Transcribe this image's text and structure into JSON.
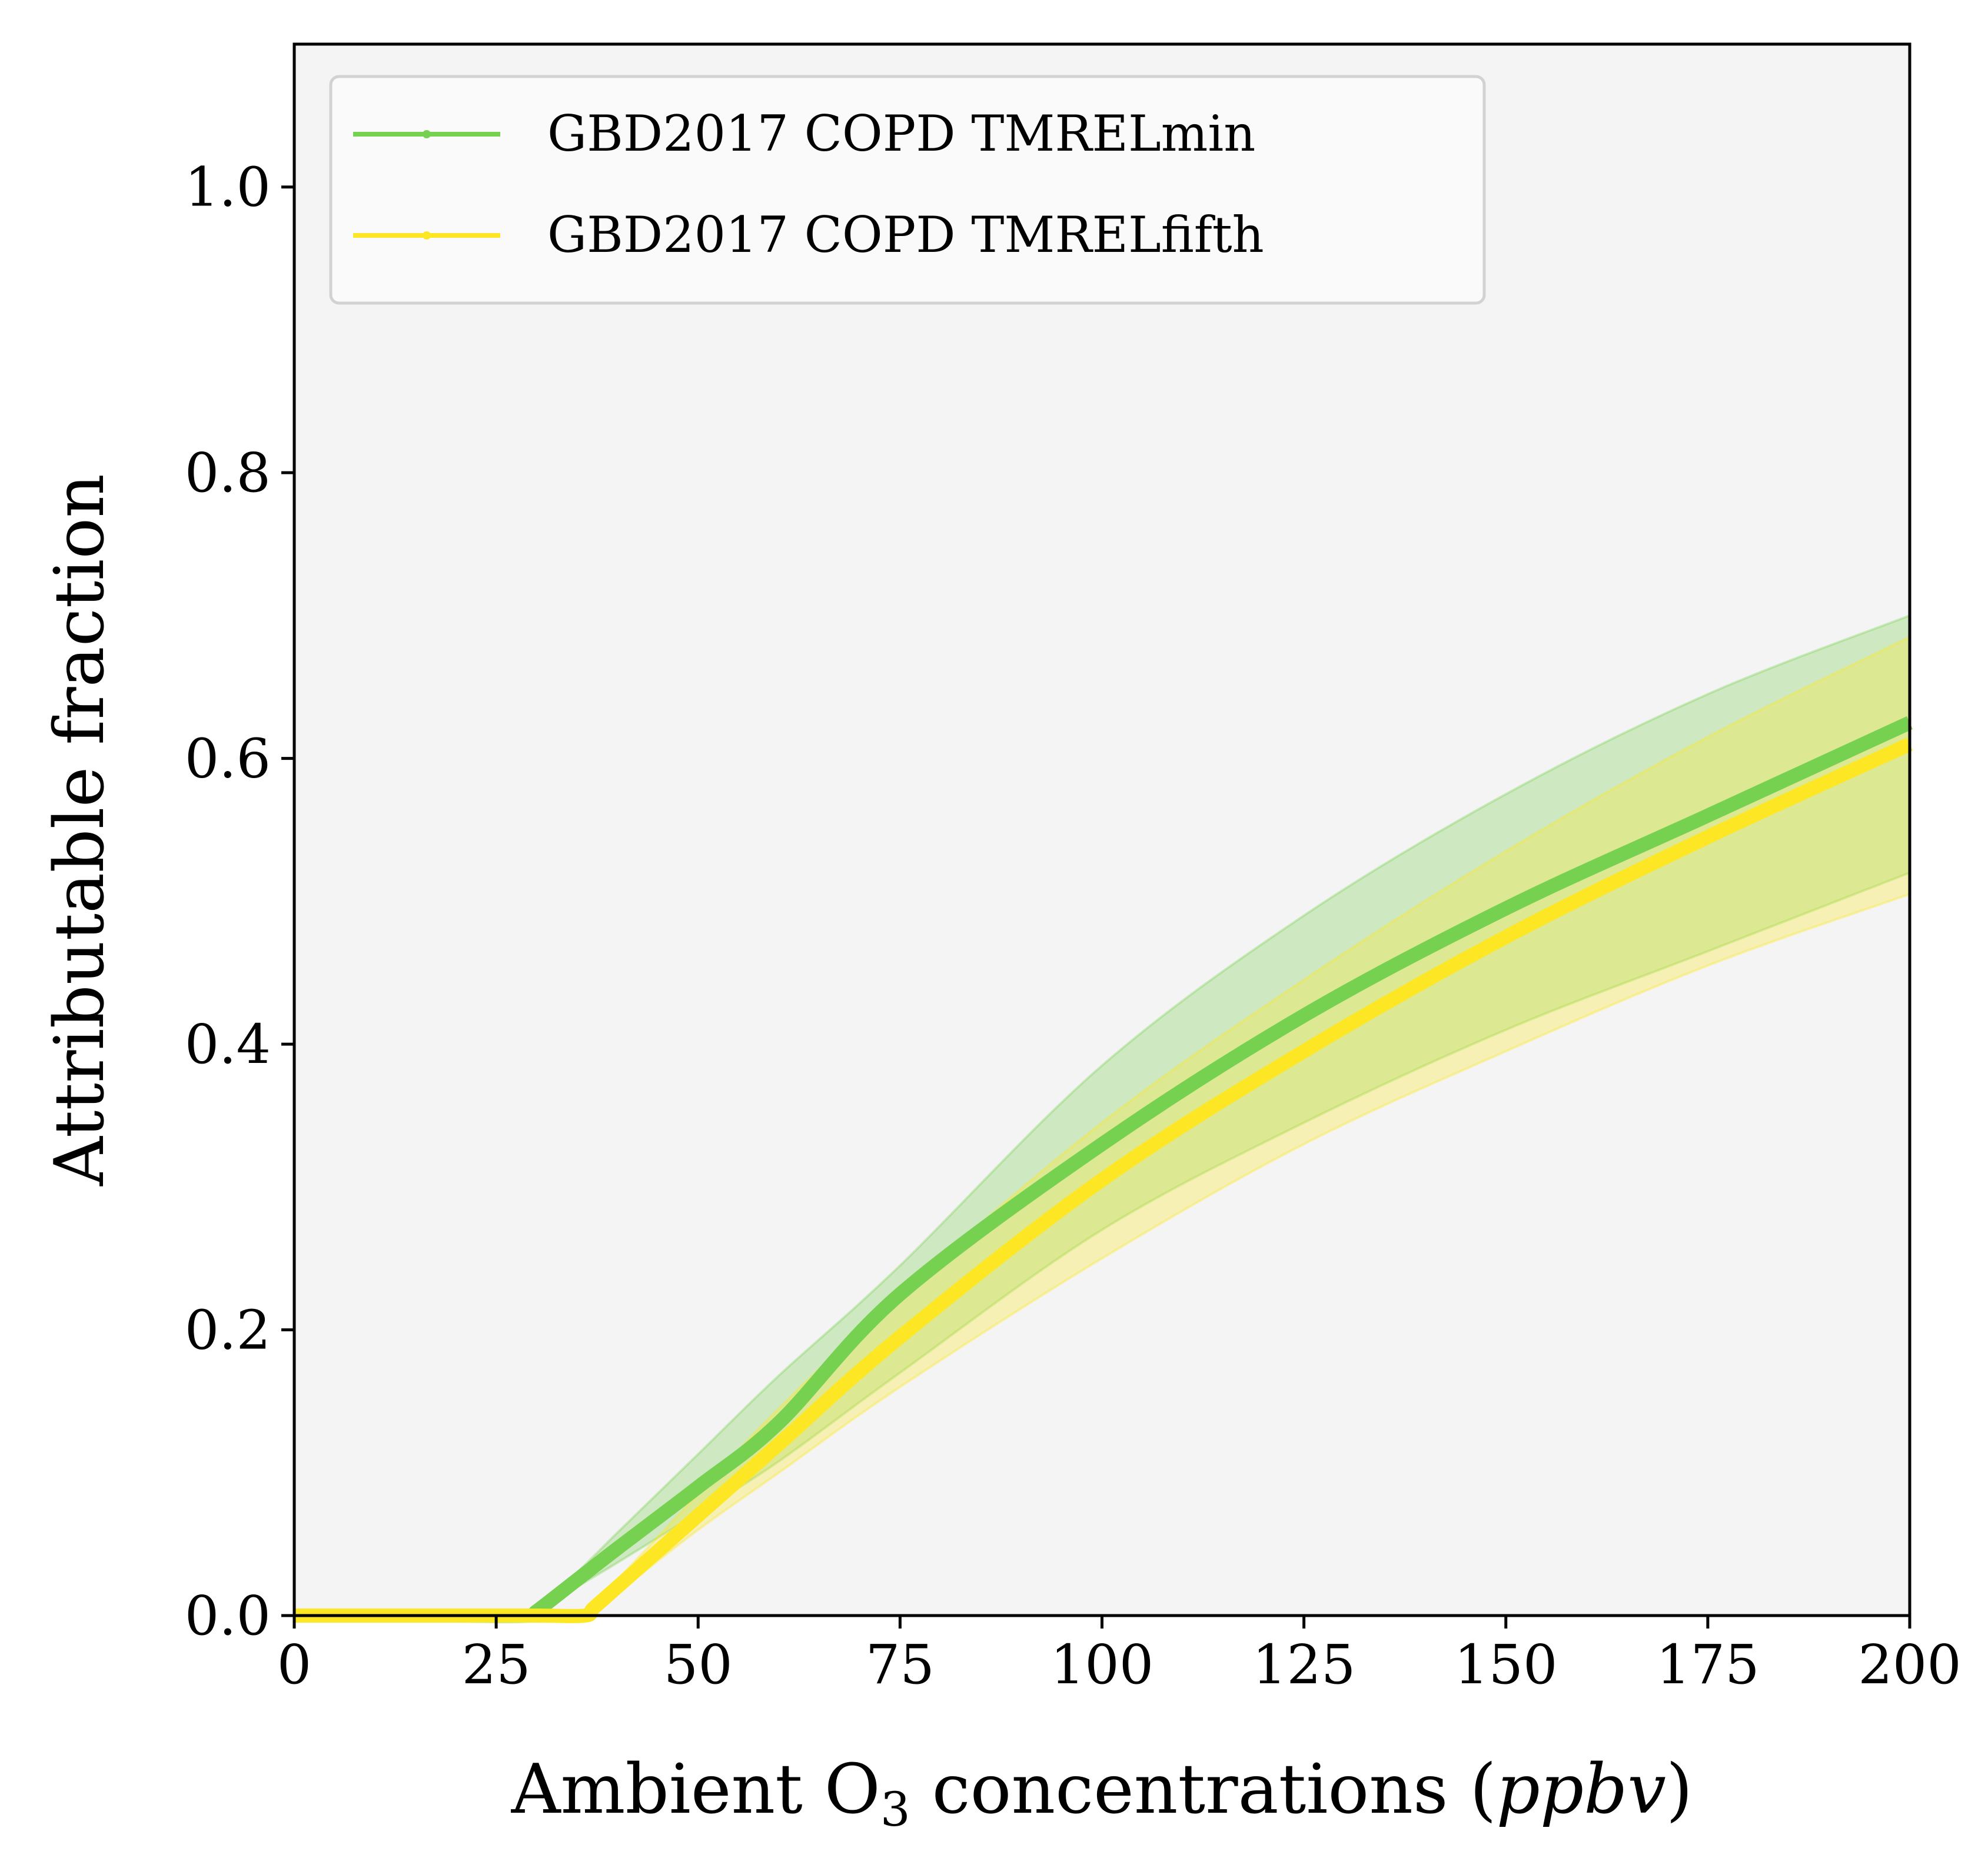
{
  "chart_data": {
    "type": "line",
    "title": "",
    "xlabel": "Ambient O",
    "xlabel_subscript": "3",
    "xlabel_suffix": " concentrations (",
    "xlabel_unit": "ppbv",
    "xlabel_close": ")",
    "ylabel": "Attributable fraction",
    "xlim": [
      0,
      200
    ],
    "ylim": [
      0,
      1.1
    ],
    "xticks": [
      0,
      25,
      50,
      75,
      100,
      125,
      150,
      175,
      200
    ],
    "xtick_labels": [
      "0",
      "25",
      "50",
      "75",
      "100",
      "125",
      "150",
      "175",
      "200"
    ],
    "yticks": [
      0.0,
      0.2,
      0.4,
      0.6,
      0.8,
      1.0
    ],
    "ytick_labels": [
      "0.0",
      "0.2",
      "0.4",
      "0.6",
      "0.8",
      "1.0"
    ],
    "grid": false,
    "legend_position": "top-left",
    "plot_background": "#f4f4f4",
    "series": [
      {
        "name": "GBD2017 COPD TMRELmin",
        "color": "#77d150",
        "x": [
          0,
          10,
          20,
          29,
          30,
          35,
          40,
          50,
          60,
          75,
          100,
          125,
          150,
          175,
          200
        ],
        "y": [
          0,
          0,
          0,
          0,
          0.003,
          0.025,
          0.047,
          0.09,
          0.135,
          0.225,
          0.33,
          0.42,
          0.495,
          0.56,
          0.625
        ],
        "lower": [
          0,
          0,
          0,
          0,
          0.002,
          0.02,
          0.037,
          0.072,
          0.108,
          0.17,
          0.27,
          0.345,
          0.41,
          0.465,
          0.52
        ],
        "upper": [
          0,
          0,
          0,
          0,
          0.004,
          0.03,
          0.058,
          0.113,
          0.168,
          0.245,
          0.385,
          0.49,
          0.575,
          0.645,
          0.7
        ]
      },
      {
        "name": "GBD2017 COPD TMRELfifth",
        "color": "#fde725",
        "x": [
          0,
          10,
          20,
          30,
          36,
          37,
          40,
          50,
          60,
          75,
          100,
          125,
          150,
          175,
          200
        ],
        "y": [
          0,
          0,
          0,
          0,
          0,
          0.005,
          0.02,
          0.07,
          0.12,
          0.195,
          0.305,
          0.395,
          0.475,
          0.545,
          0.61
        ],
        "lower": [
          0,
          0,
          0,
          0,
          0,
          0.004,
          0.016,
          0.06,
          0.1,
          0.16,
          0.25,
          0.33,
          0.395,
          0.455,
          0.505
        ],
        "upper": [
          0,
          0,
          0,
          0,
          0,
          0.006,
          0.025,
          0.085,
          0.145,
          0.225,
          0.345,
          0.445,
          0.535,
          0.615,
          0.685
        ]
      }
    ]
  }
}
